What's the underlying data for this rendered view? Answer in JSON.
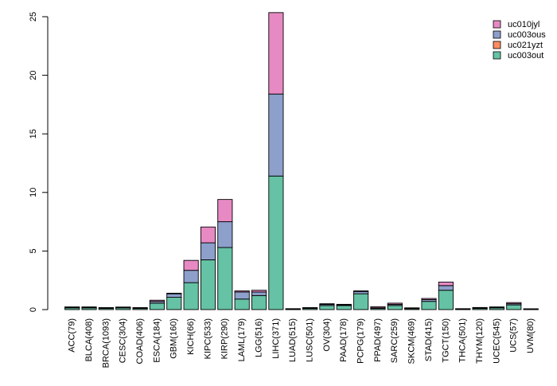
{
  "chart_data": {
    "type": "bar",
    "stacked": true,
    "title": "",
    "xlabel": "",
    "ylabel": "",
    "ylim": [
      0,
      25
    ],
    "yticks": [
      0,
      5,
      10,
      15,
      20,
      25
    ],
    "grid": false,
    "legend_position": "top-right",
    "categories": [
      "ACC(79)",
      "BLCA(408)",
      "BRCA(1093)",
      "CESC(304)",
      "COAD(406)",
      "ESCA(184)",
      "GBM(160)",
      "KICH(66)",
      "KIPC(533)",
      "KIRP(290)",
      "LAML(179)",
      "LGG(516)",
      "LIHC(371)",
      "LUAD(515)",
      "LUSC(501)",
      "OV(304)",
      "PAAD(178)",
      "PCPG(179)",
      "PPAD(497)",
      "SARC(259)",
      "SKCM(469)",
      "STAD(415)",
      "TGCT(150)",
      "THCA(501)",
      "THYM(120)",
      "UCEC(545)",
      "UCS(57)",
      "UVM(80)"
    ],
    "series": [
      {
        "name": "uc003out",
        "color": "#66c2a5",
        "values": [
          0.15,
          0.15,
          0.1,
          0.15,
          0.1,
          0.55,
          1.05,
          2.3,
          4.25,
          5.3,
          0.9,
          1.2,
          11.4,
          0.05,
          0.1,
          0.35,
          0.35,
          1.35,
          0.1,
          0.35,
          0.1,
          0.7,
          1.65,
          0.05,
          0.1,
          0.15,
          0.4,
          0.05
        ]
      },
      {
        "name": "uc021yzt",
        "color": "#fc8d62",
        "values": [
          0,
          0,
          0,
          0,
          0,
          0,
          0,
          0,
          0,
          0,
          0,
          0,
          0,
          0,
          0,
          0,
          0,
          0,
          0,
          0,
          0,
          0,
          0,
          0,
          0,
          0,
          0,
          0
        ]
      },
      {
        "name": "uc003ous",
        "color": "#8da0cb",
        "values": [
          0.05,
          0.05,
          0.05,
          0.05,
          0.05,
          0.15,
          0.3,
          1.05,
          1.45,
          2.2,
          0.6,
          0.3,
          7.0,
          0.02,
          0.05,
          0.1,
          0.05,
          0.2,
          0.05,
          0.1,
          0.03,
          0.15,
          0.4,
          0.02,
          0.05,
          0.05,
          0.1,
          0.01
        ]
      },
      {
        "name": "uc010jyl",
        "color": "#e78ac3",
        "values": [
          0.03,
          0.03,
          0.02,
          0.02,
          0.02,
          0.1,
          0.05,
          0.85,
          1.35,
          1.9,
          0.1,
          0.15,
          6.95,
          0.01,
          0.02,
          0.05,
          0.05,
          0.05,
          0.1,
          0.1,
          0.02,
          0.1,
          0.3,
          0.01,
          0.03,
          0.03,
          0.1,
          0.01
        ]
      }
    ],
    "legend": [
      "uc010jyl",
      "uc003ous",
      "uc021yzt",
      "uc003out"
    ]
  }
}
